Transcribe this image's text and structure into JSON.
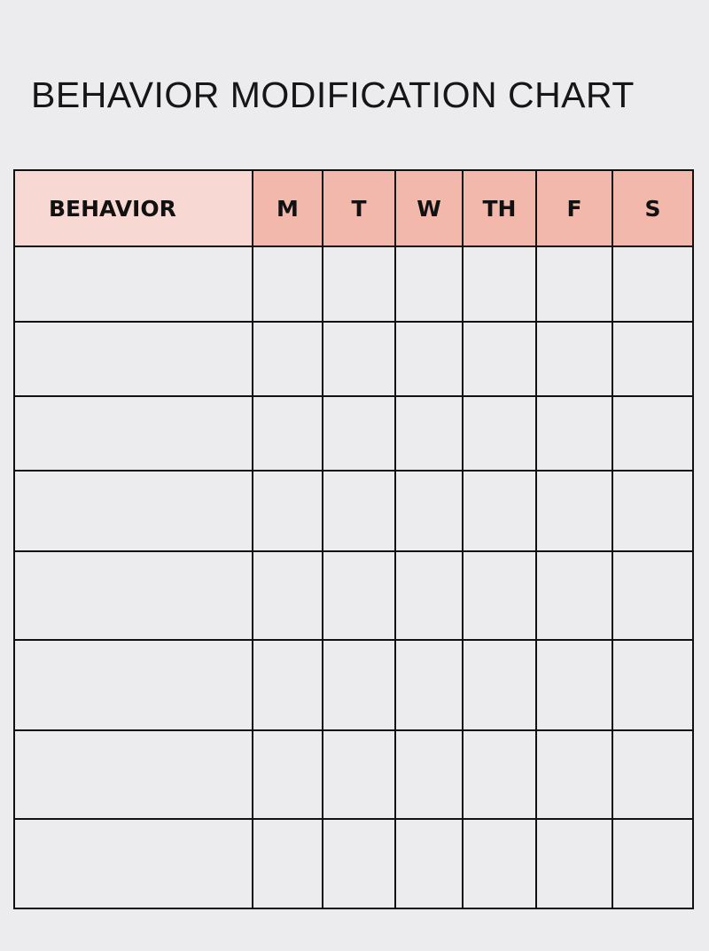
{
  "title": "BEHAVIOR MODIFICATION CHART",
  "table": {
    "headers": [
      "BEHAVIOR",
      "M",
      "T",
      "W",
      "TH",
      "F",
      "S"
    ],
    "row_count": 9
  },
  "colors": {
    "background": "#ececee",
    "behavior_header": "#f8d8d2",
    "day_header": "#f2b8ab",
    "grid_lines": "#111111"
  }
}
